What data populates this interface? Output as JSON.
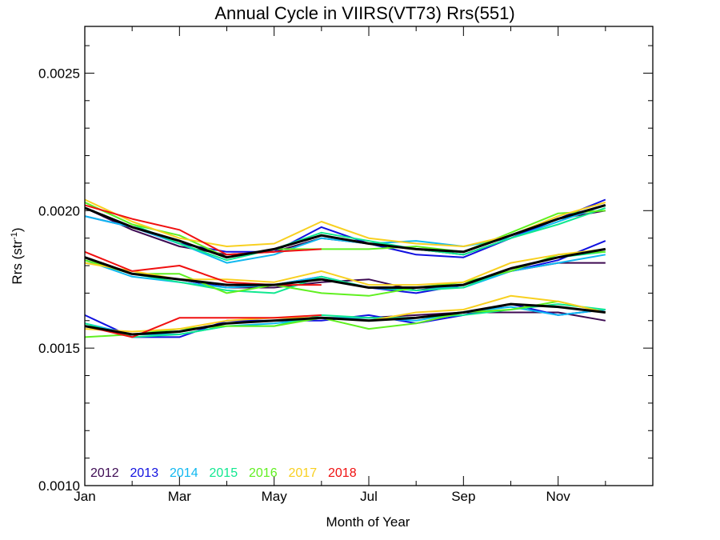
{
  "chart_data": {
    "type": "line",
    "title": "Annual Cycle in VIIRS(VT73) Rrs(551)",
    "xlabel": "Month of Year",
    "ylabel_main": "Rrs (str",
    "ylabel_sup": "-1",
    "ylabel_close": ")",
    "xlim": [
      1,
      13
    ],
    "ylim": [
      0.001,
      0.00267
    ],
    "x_ticks": [
      {
        "value": 1,
        "label": "Jan"
      },
      {
        "value": 3,
        "label": "Mar"
      },
      {
        "value": 5,
        "label": "May"
      },
      {
        "value": 7,
        "label": "Jul"
      },
      {
        "value": 9,
        "label": "Sep"
      },
      {
        "value": 11,
        "label": "Nov"
      }
    ],
    "x_minor_ticks": [
      2,
      4,
      6,
      8,
      10,
      12
    ],
    "y_ticks": [
      {
        "value": 0.001,
        "label": "0.0010"
      },
      {
        "value": 0.0015,
        "label": "0.0015"
      },
      {
        "value": 0.002,
        "label": "0.0020"
      },
      {
        "value": 0.0025,
        "label": "0.0025"
      }
    ],
    "y_minor_ticks": [
      0.0011,
      0.0012,
      0.0013,
      0.0014,
      0.0016,
      0.0017,
      0.0018,
      0.0019,
      0.0021,
      0.0022,
      0.0023,
      0.0024,
      0.0026
    ],
    "grid": false,
    "legend_position": "bottom-left inside",
    "groups": [
      "upper",
      "middle",
      "lower"
    ],
    "x": [
      1,
      2,
      3,
      4,
      5,
      6,
      7,
      8,
      9,
      10,
      11,
      12
    ],
    "series": [
      {
        "name": "2012",
        "color": "#3d0a52",
        "values": {
          "upper": [
            0.00201,
            0.00193,
            0.00187,
            0.00184,
            0.00185,
            0.0019,
            0.00188,
            0.00186,
            0.00184,
            0.0019,
            0.00197,
            0.002
          ],
          "middle": [
            0.00183,
            0.00177,
            0.00175,
            0.00172,
            0.00172,
            0.00174,
            0.00175,
            0.00171,
            0.00173,
            0.00178,
            0.00181,
            0.00181
          ],
          "lower": [
            0.00158,
            0.00155,
            0.00156,
            0.00159,
            0.0016,
            0.00161,
            0.00161,
            0.00162,
            0.00163,
            0.00163,
            0.00163,
            0.0016
          ]
        }
      },
      {
        "name": "2013",
        "color": "#1010e0",
        "values": {
          "upper": [
            0.00198,
            0.00194,
            0.00188,
            0.00185,
            0.00185,
            0.00194,
            0.00188,
            0.00184,
            0.00183,
            0.0019,
            0.00197,
            0.00204
          ],
          "middle": [
            0.00182,
            0.00177,
            0.00175,
            0.00172,
            0.00173,
            0.00176,
            0.00172,
            0.0017,
            0.00173,
            0.00178,
            0.00182,
            0.00189
          ],
          "lower": [
            0.00162,
            0.00154,
            0.00154,
            0.0016,
            0.0016,
            0.0016,
            0.00162,
            0.00159,
            0.00162,
            0.00166,
            0.00162,
            0.00164
          ]
        }
      },
      {
        "name": "2014",
        "color": "#10b8f0",
        "values": {
          "upper": [
            0.00198,
            0.00194,
            0.00188,
            0.00181,
            0.00184,
            0.0019,
            0.00188,
            0.00189,
            0.00187,
            0.0019,
            0.00196,
            0.00202
          ],
          "middle": [
            0.00182,
            0.00176,
            0.00174,
            0.00172,
            0.00173,
            0.00176,
            0.00172,
            0.00172,
            0.00172,
            0.00178,
            0.00181,
            0.00184
          ],
          "lower": [
            0.00159,
            0.00155,
            0.00155,
            0.00158,
            0.00159,
            0.00161,
            0.00161,
            0.0016,
            0.00163,
            0.00165,
            0.00162,
            0.00164
          ]
        }
      },
      {
        "name": "2015",
        "color": "#10e890",
        "values": {
          "upper": [
            0.00203,
            0.00195,
            0.00188,
            0.00182,
            0.00186,
            0.00192,
            0.00189,
            0.00186,
            0.00184,
            0.0019,
            0.00195,
            0.00201
          ],
          "middle": [
            0.00182,
            0.00177,
            0.00174,
            0.00171,
            0.0017,
            0.00176,
            0.00172,
            0.00171,
            0.00172,
            0.00179,
            0.00183,
            0.00185
          ],
          "lower": [
            0.00159,
            0.00154,
            0.00155,
            0.00158,
            0.00158,
            0.00162,
            0.00161,
            0.00161,
            0.00162,
            0.00164,
            0.00166,
            0.00164
          ]
        }
      },
      {
        "name": "2016",
        "color": "#60f020",
        "values": {
          "upper": [
            0.00203,
            0.00195,
            0.00191,
            0.00183,
            0.00186,
            0.00186,
            0.00186,
            0.00187,
            0.00185,
            0.00192,
            0.00199,
            0.002
          ],
          "middle": [
            0.00182,
            0.00177,
            0.00177,
            0.0017,
            0.00173,
            0.0017,
            0.00169,
            0.00172,
            0.00174,
            0.00178,
            0.00184,
            0.00185
          ],
          "lower": [
            0.00154,
            0.00155,
            0.00157,
            0.00158,
            0.00158,
            0.00161,
            0.00157,
            0.00159,
            0.00163,
            0.00164,
            0.00167,
            0.00163
          ]
        }
      },
      {
        "name": "2017",
        "color": "#f8d020",
        "values": {
          "upper": [
            0.00204,
            0.00196,
            0.0019,
            0.00187,
            0.00188,
            0.00196,
            0.0019,
            0.00188,
            0.00187,
            0.00191,
            0.00198,
            0.00203
          ],
          "middle": [
            0.00181,
            0.00178,
            0.00175,
            0.00175,
            0.00174,
            0.00178,
            0.00173,
            0.00173,
            0.00174,
            0.00181,
            0.00184,
            0.00186
          ],
          "lower": [
            0.00157,
            0.00156,
            0.00157,
            0.0016,
            0.00161,
            0.00161,
            0.0016,
            0.00163,
            0.00164,
            0.00169,
            0.00167,
            0.00163
          ]
        }
      },
      {
        "name": "2018",
        "color": "#f01010",
        "values": {
          "upper": [
            0.00202,
            0.00197,
            0.00193,
            0.00184,
            0.00185,
            0.00186,
            null,
            null,
            null,
            null,
            null,
            null
          ],
          "middle": [
            0.00185,
            0.00178,
            0.0018,
            0.00174,
            0.00173,
            0.00173,
            null,
            null,
            null,
            null,
            null,
            null
          ],
          "lower": [
            0.00158,
            0.00154,
            0.00161,
            0.00161,
            0.00161,
            0.00162,
            null,
            null,
            null,
            null,
            null,
            null
          ]
        }
      },
      {
        "name": "",
        "color": "#000000",
        "line_width": 3,
        "values": {
          "upper": [
            0.00201,
            0.00194,
            0.00189,
            0.00183,
            0.00186,
            0.00191,
            0.00188,
            0.00186,
            0.00185,
            0.00191,
            0.00197,
            0.00202
          ],
          "middle": [
            0.00183,
            0.00177,
            0.00175,
            0.00173,
            0.00173,
            0.00175,
            0.00172,
            0.00172,
            0.00173,
            0.00179,
            0.00183,
            0.00186
          ],
          "lower": [
            0.00158,
            0.00155,
            0.00156,
            0.00159,
            0.0016,
            0.00161,
            0.0016,
            0.00161,
            0.00163,
            0.00166,
            0.00165,
            0.00163
          ]
        }
      }
    ]
  }
}
